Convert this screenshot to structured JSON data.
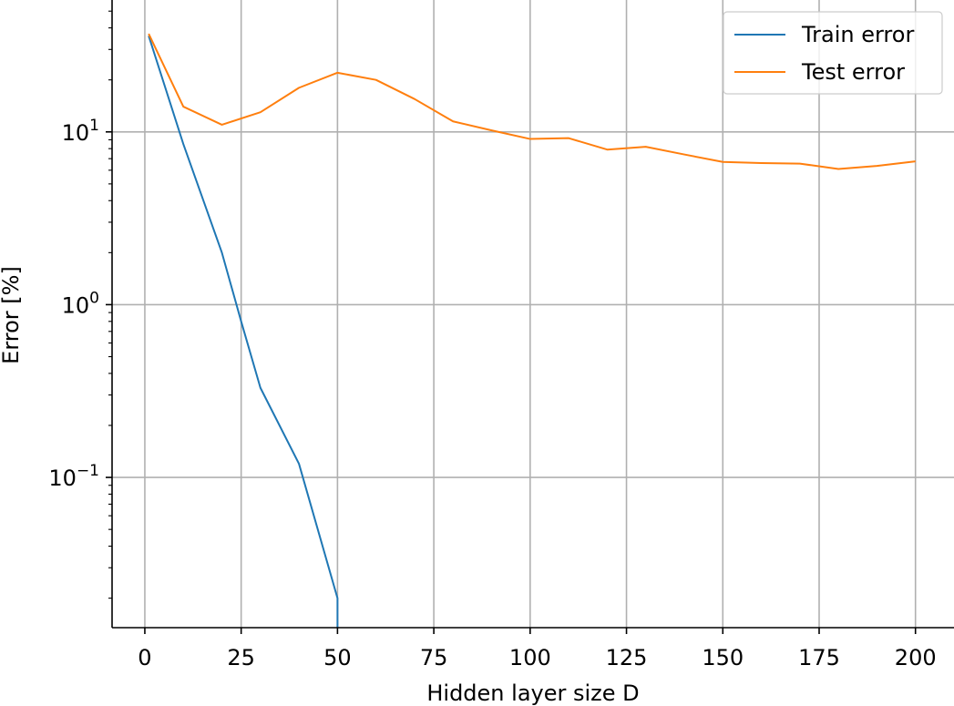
{
  "chart_data": {
    "type": "line",
    "xlabel": "Hidden layer size D",
    "ylabel": "Error [%]",
    "xlim": [
      -8.5,
      210
    ],
    "ylim": [
      0.0135,
      58
    ],
    "yscale": "log",
    "grid": true,
    "legend_position": "top-right",
    "x_ticks": [
      0,
      25,
      50,
      75,
      100,
      125,
      150,
      175,
      200
    ],
    "x_tick_labels": [
      "0",
      "25",
      "50",
      "75",
      "100",
      "125",
      "150",
      "175",
      "200"
    ],
    "y_ticks": [
      {
        "value": 0.1,
        "base": "10",
        "exp": "−1"
      },
      {
        "value": 1,
        "base": "10",
        "exp": "0"
      },
      {
        "value": 10,
        "base": "10",
        "exp": "1"
      }
    ],
    "series": [
      {
        "name": "Train error",
        "color": "#1f77b4",
        "x": [
          1,
          10,
          20,
          25,
          30,
          40,
          50,
          50
        ],
        "y": [
          36,
          8.5,
          2.0,
          0.8,
          0.33,
          0.12,
          0.02,
          0.0135
        ]
      },
      {
        "name": "Test error",
        "color": "#ff7f0e",
        "x": [
          1,
          10,
          20,
          30,
          40,
          50,
          60,
          70,
          80,
          90,
          100,
          110,
          120,
          130,
          140,
          150,
          160,
          170,
          180,
          190,
          200
        ],
        "y": [
          37,
          14,
          11,
          13,
          18,
          22,
          20,
          15.5,
          11.5,
          10.2,
          9.1,
          9.2,
          7.9,
          8.2,
          7.4,
          6.7,
          6.6,
          6.55,
          6.1,
          6.35,
          6.75
        ]
      }
    ]
  }
}
